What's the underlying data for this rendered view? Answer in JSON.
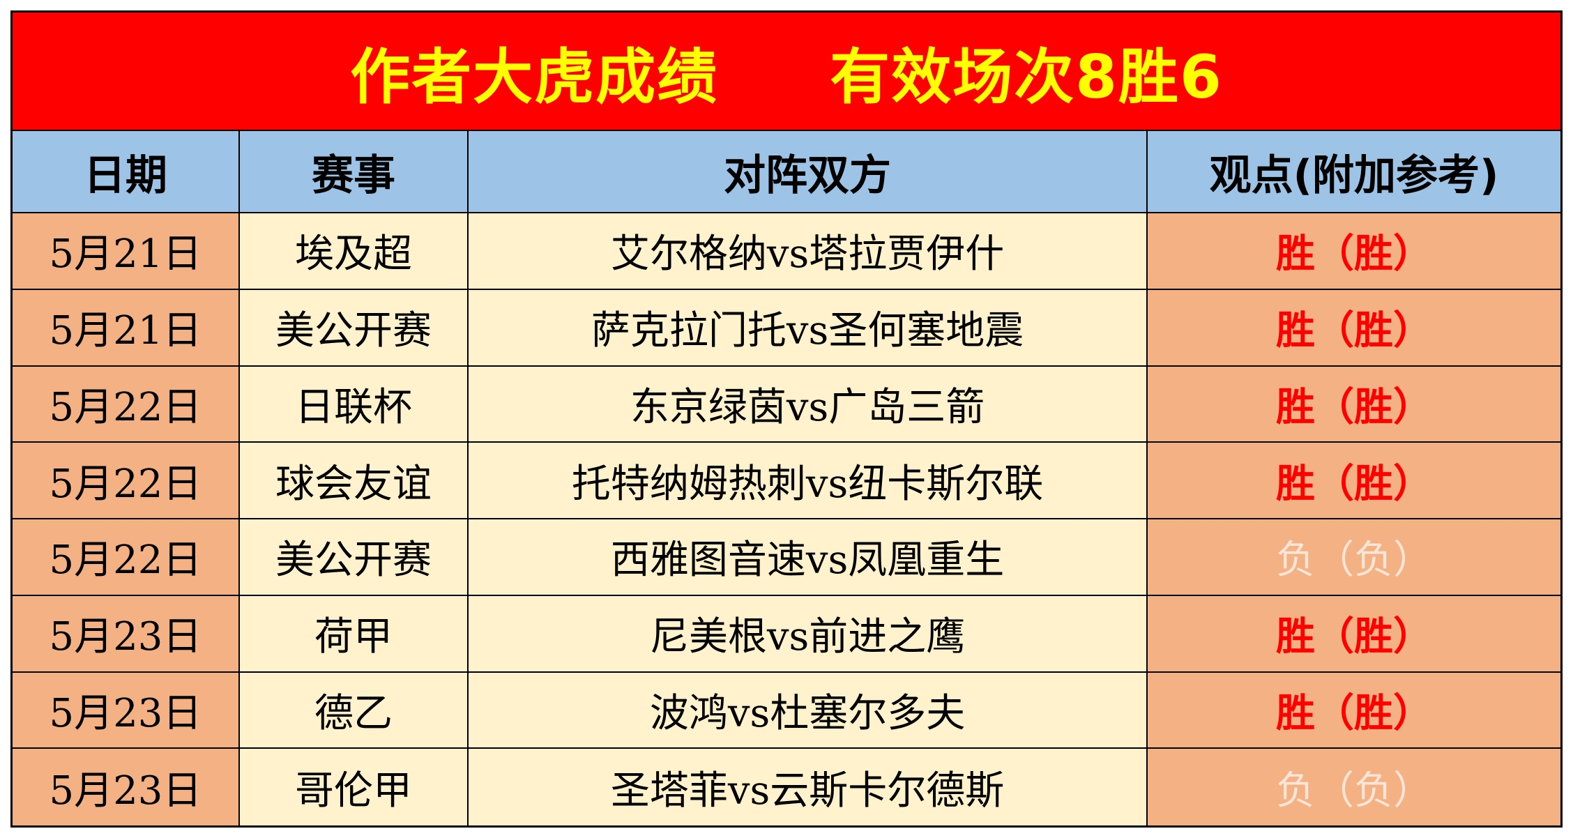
{
  "title": {
    "left": "作者大虎成绩",
    "right": "有效场次8胜6"
  },
  "headers": [
    "日期",
    "赛事",
    "对阵双方",
    "观点(附加参考)"
  ],
  "rows": [
    {
      "date": "5月21日",
      "event": "埃及超",
      "match": "艾尔格纳vs塔拉贾伊什",
      "view": "胜（胜）",
      "result": "win"
    },
    {
      "date": "5月21日",
      "event": "美公开赛",
      "match": "萨克拉门托vs圣何塞地震",
      "view": "胜（胜）",
      "result": "win"
    },
    {
      "date": "5月22日",
      "event": "日联杯",
      "match": "东京绿茵vs广岛三箭",
      "view": "胜（胜）",
      "result": "win"
    },
    {
      "date": "5月22日",
      "event": "球会友谊",
      "match": "托特纳姆热刺vs纽卡斯尔联",
      "view": "胜（胜）",
      "result": "win"
    },
    {
      "date": "5月22日",
      "event": "美公开赛",
      "match": "西雅图音速vs凤凰重生",
      "view": "负（负）",
      "result": "loss"
    },
    {
      "date": "5月23日",
      "event": "荷甲",
      "match": "尼美根vs前进之鹰",
      "view": "胜（胜）",
      "result": "win"
    },
    {
      "date": "5月23日",
      "event": "德乙",
      "match": "波鸿vs杜塞尔多夫",
      "view": "胜（胜）",
      "result": "win"
    },
    {
      "date": "5月23日",
      "event": "哥伦甲",
      "match": "圣塔菲vs云斯卡尔德斯",
      "view": "负（负）",
      "result": "loss"
    }
  ],
  "colors": {
    "title_bg": "#ff0000",
    "title_text": "#ffff00",
    "header_bg": "#9dc3e6",
    "date_bg": "#f4b183",
    "body_bg": "#fff2cc",
    "view_bg": "#f4b183",
    "win_text": "#ff0000",
    "loss_text": "#fbe5d6"
  }
}
